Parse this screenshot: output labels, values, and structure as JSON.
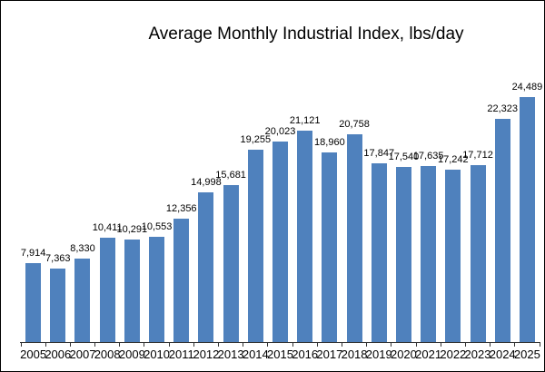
{
  "chart_data": {
    "type": "bar",
    "title": "Average Monthly Industrial Index, lbs/day",
    "categories": [
      "2005",
      "2006",
      "2007",
      "2008",
      "2009",
      "2010",
      "2011",
      "2012",
      "2013",
      "2014",
      "2015",
      "2016",
      "2017",
      "2018",
      "2019",
      "2020",
      "2021",
      "2022",
      "2023",
      "2024",
      "2025"
    ],
    "values": [
      7914,
      7363,
      8330,
      10411,
      10291,
      10553,
      12356,
      14998,
      15681,
      19255,
      20023,
      21121,
      18960,
      20758,
      17847,
      17540,
      17635,
      17242,
      17712,
      22323,
      24489
    ],
    "value_labels": [
      "7,914",
      "7,363",
      "8,330",
      "10,411",
      "10,291",
      "10,553",
      "12,356",
      "14,998",
      "15,681",
      "19,255",
      "20,023",
      "21,121",
      "18,960",
      "20,758",
      "17,847",
      "17,540",
      "17,635",
      "17,242",
      "17,712",
      "22,323",
      "24,489"
    ],
    "xlabel": "",
    "ylabel": "",
    "ylim": [
      0,
      24489
    ],
    "grid": "off",
    "legend": "none",
    "y_axis_visible": false,
    "data_labels_position": "above bars",
    "bar_color": "#4F81BD",
    "axis_color": "#333333",
    "text_color": "#000000",
    "background_color": "#FFFFFF",
    "border_color": "#000000"
  }
}
